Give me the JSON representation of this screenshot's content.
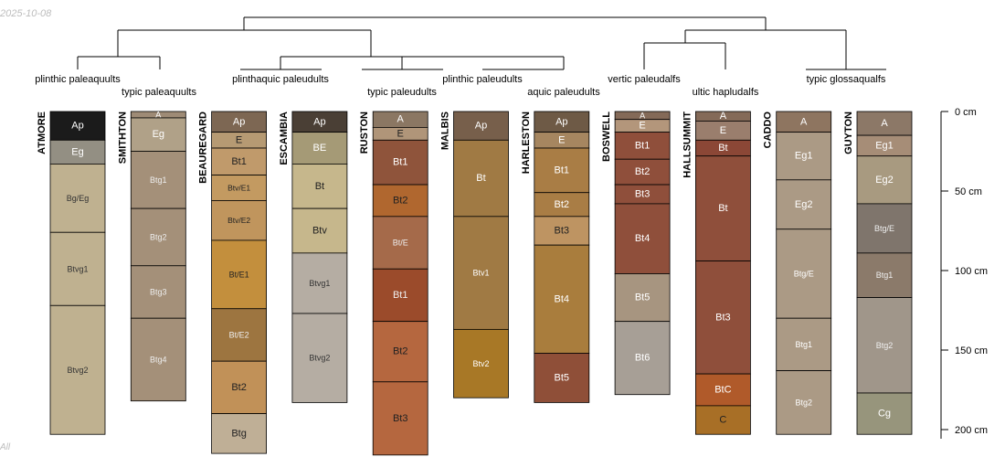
{
  "figure": {
    "date_stamp": "2025-10-08",
    "corner_note": "All"
  },
  "depth_axis": {
    "ticks": [
      {
        "depth": 0,
        "label": "0 cm"
      },
      {
        "depth": 50,
        "label": "50 cm"
      },
      {
        "depth": 100,
        "label": "100 cm"
      },
      {
        "depth": 150,
        "label": "150 cm"
      },
      {
        "depth": 200,
        "label": "200 cm"
      }
    ]
  },
  "dendrogram": {
    "groups": [
      "plinthic paleaquults",
      "typic paleaquults",
      "plinthaquic paleudults",
      "typic paleudults",
      "plinthic paleudults",
      "aquic paleudults",
      "vertic paleudalfs",
      "ultic hapludalfs",
      "typic glossaqualfs"
    ]
  },
  "profiles": [
    {
      "name": "ATMORE",
      "horizons": [
        {
          "name": "Ap",
          "top": 0,
          "bottom": 18,
          "color": "#1b1b1b",
          "text": "#ffffff"
        },
        {
          "name": "Eg",
          "top": 18,
          "bottom": 33,
          "color": "#938f83",
          "text": "#ffffff"
        },
        {
          "name": "Bg/Eg",
          "top": 33,
          "bottom": 76,
          "color": "#bfb190",
          "text": "#333333"
        },
        {
          "name": "Btvg1",
          "top": 76,
          "bottom": 122,
          "color": "#bfb190",
          "text": "#333333"
        },
        {
          "name": "Btvg2",
          "top": 122,
          "bottom": 203,
          "color": "#bfb190",
          "text": "#333333"
        }
      ]
    },
    {
      "name": "SMITHTON",
      "horizons": [
        {
          "name": "A",
          "top": 0,
          "bottom": 4,
          "color": "#9e8b76",
          "text": "#ffffff"
        },
        {
          "name": "Eg",
          "top": 4,
          "bottom": 25,
          "color": "#b0a188",
          "text": "#ffffff"
        },
        {
          "name": "Btg1",
          "top": 25,
          "bottom": 61,
          "color": "#a49079",
          "text": "#eeeeee"
        },
        {
          "name": "Btg2",
          "top": 61,
          "bottom": 97,
          "color": "#a49079",
          "text": "#eeeeee"
        },
        {
          "name": "Btg3",
          "top": 97,
          "bottom": 130,
          "color": "#a49079",
          "text": "#eeeeee"
        },
        {
          "name": "Btg4",
          "top": 130,
          "bottom": 182,
          "color": "#a49079",
          "text": "#eeeeee"
        }
      ]
    },
    {
      "name": "BEAUREGARD",
      "horizons": [
        {
          "name": "Ap",
          "top": 0,
          "bottom": 13,
          "color": "#7d6753",
          "text": "#ffffff"
        },
        {
          "name": "E",
          "top": 13,
          "bottom": 23,
          "color": "#b69a73",
          "text": "#222222"
        },
        {
          "name": "Bt1",
          "top": 23,
          "bottom": 40,
          "color": "#c09a6b",
          "text": "#222222"
        },
        {
          "name": "Btv/E1",
          "top": 40,
          "bottom": 56,
          "color": "#c39a61",
          "text": "#222222"
        },
        {
          "name": "Btv/E2",
          "top": 56,
          "bottom": 81,
          "color": "#c0955d",
          "text": "#222222"
        },
        {
          "name": "Bt/E1",
          "top": 81,
          "bottom": 124,
          "color": "#c38f3d",
          "text": "#222222"
        },
        {
          "name": "Bt/E2",
          "top": 124,
          "bottom": 157,
          "color": "#9d7540",
          "text": "#eeeeee"
        },
        {
          "name": "Bt2",
          "top": 157,
          "bottom": 190,
          "color": "#c19158",
          "text": "#222222"
        },
        {
          "name": "Btg",
          "top": 190,
          "bottom": 215,
          "color": "#bfaf96",
          "text": "#222222"
        }
      ]
    },
    {
      "name": "ESCAMBIA",
      "horizons": [
        {
          "name": "Ap",
          "top": 0,
          "bottom": 13,
          "color": "#4a3f35",
          "text": "#ffffff"
        },
        {
          "name": "BE",
          "top": 13,
          "bottom": 33,
          "color": "#a59a76",
          "text": "#ffffff"
        },
        {
          "name": "Bt",
          "top": 33,
          "bottom": 61,
          "color": "#c6b78c",
          "text": "#222222"
        },
        {
          "name": "Btv",
          "top": 61,
          "bottom": 89,
          "color": "#c6b78c",
          "text": "#222222"
        },
        {
          "name": "Btvg1",
          "top": 89,
          "bottom": 127,
          "color": "#b5ada3",
          "text": "#333333"
        },
        {
          "name": "Btvg2",
          "top": 127,
          "bottom": 183,
          "color": "#b5ada3",
          "text": "#333333"
        }
      ]
    },
    {
      "name": "RUSTON",
      "horizons": [
        {
          "name": "A",
          "top": 0,
          "bottom": 10,
          "color": "#8b7763",
          "text": "#ffffff"
        },
        {
          "name": "E",
          "top": 10,
          "bottom": 18,
          "color": "#b09579",
          "text": "#222222"
        },
        {
          "name": "Bt1",
          "top": 18,
          "bottom": 46,
          "color": "#8f543b",
          "text": "#ffffff"
        },
        {
          "name": "Bt2",
          "top": 46,
          "bottom": 66,
          "color": "#b0672f",
          "text": "#222222"
        },
        {
          "name": "Bt/E",
          "top": 66,
          "bottom": 99,
          "color": "#a56a4a",
          "text": "#eeeeee"
        },
        {
          "name": "Bt1",
          "top": 99,
          "bottom": 132,
          "color": "#9b4b2b",
          "text": "#eeeeee"
        },
        {
          "name": "Bt2",
          "top": 132,
          "bottom": 170,
          "color": "#b5673f",
          "text": "#222222"
        },
        {
          "name": "Bt3",
          "top": 170,
          "bottom": 216,
          "color": "#b5673f",
          "text": "#222222"
        }
      ]
    },
    {
      "name": "MALBIS",
      "horizons": [
        {
          "name": "Ap",
          "top": 0,
          "bottom": 18,
          "color": "#775f4b",
          "text": "#ffffff"
        },
        {
          "name": "Bt",
          "top": 18,
          "bottom": 66,
          "color": "#a07a44",
          "text": "#ffffff"
        },
        {
          "name": "Btv1",
          "top": 66,
          "bottom": 137,
          "color": "#a07a44",
          "text": "#ffffff"
        },
        {
          "name": "Btv2",
          "top": 137,
          "bottom": 180,
          "color": "#a87826",
          "text": "#ffffff"
        }
      ]
    },
    {
      "name": "HARLESTON",
      "horizons": [
        {
          "name": "Ap",
          "top": 0,
          "bottom": 13,
          "color": "#6e5a46",
          "text": "#ffffff"
        },
        {
          "name": "E",
          "top": 13,
          "bottom": 23,
          "color": "#a68660",
          "text": "#ffffff"
        },
        {
          "name": "Bt1",
          "top": 23,
          "bottom": 51,
          "color": "#a97d45",
          "text": "#ffffff"
        },
        {
          "name": "Bt2",
          "top": 51,
          "bottom": 66,
          "color": "#a97d45",
          "text": "#ffffff"
        },
        {
          "name": "Bt3",
          "top": 66,
          "bottom": 84,
          "color": "#be9462",
          "text": "#222222"
        },
        {
          "name": "Bt4",
          "top": 84,
          "bottom": 152,
          "color": "#a97d3d",
          "text": "#ffffff"
        },
        {
          "name": "Bt5",
          "top": 152,
          "bottom": 183,
          "color": "#8f4f38",
          "text": "#ffffff"
        }
      ]
    },
    {
      "name": "BOSWELL",
      "horizons": [
        {
          "name": "A",
          "top": 0,
          "bottom": 5,
          "color": "#846a58",
          "text": "#ffffff"
        },
        {
          "name": "E",
          "top": 5,
          "bottom": 13,
          "color": "#b3967b",
          "text": "#ffffff"
        },
        {
          "name": "Bt1",
          "top": 13,
          "bottom": 30,
          "color": "#8f4f3b",
          "text": "#ffffff"
        },
        {
          "name": "Bt2",
          "top": 30,
          "bottom": 46,
          "color": "#8f4f3b",
          "text": "#ffffff"
        },
        {
          "name": "Bt3",
          "top": 46,
          "bottom": 58,
          "color": "#8f4f3b",
          "text": "#ffffff"
        },
        {
          "name": "Bt4",
          "top": 58,
          "bottom": 102,
          "color": "#8f4f3b",
          "text": "#ffffff"
        },
        {
          "name": "Bt5",
          "top": 102,
          "bottom": 132,
          "color": "#a79580",
          "text": "#ffffff"
        },
        {
          "name": "Bt6",
          "top": 132,
          "bottom": 178,
          "color": "#a79f96",
          "text": "#ffffff"
        }
      ]
    },
    {
      "name": "HALLSUMMIT",
      "horizons": [
        {
          "name": "A",
          "top": 0,
          "bottom": 6,
          "color": "#846a58",
          "text": "#ffffff"
        },
        {
          "name": "E",
          "top": 6,
          "bottom": 18,
          "color": "#9a7e6d",
          "text": "#ffffff"
        },
        {
          "name": "Bt",
          "top": 18,
          "bottom": 28,
          "color": "#8b4736",
          "text": "#ffffff"
        },
        {
          "name": "Bt",
          "top": 28,
          "bottom": 94,
          "color": "#8f4f3b",
          "text": "#ffffff"
        },
        {
          "name": "Bt3",
          "top": 94,
          "bottom": 165,
          "color": "#8f4f3b",
          "text": "#ffffff"
        },
        {
          "name": "BtC",
          "top": 165,
          "bottom": 185,
          "color": "#b05a2a",
          "text": "#ffffff"
        },
        {
          "name": "C",
          "top": 185,
          "bottom": 203,
          "color": "#a86f26",
          "text": "#222222"
        }
      ]
    },
    {
      "name": "CADDO",
      "horizons": [
        {
          "name": "A",
          "top": 0,
          "bottom": 13,
          "color": "#8e7560",
          "text": "#ffffff"
        },
        {
          "name": "Eg1",
          "top": 13,
          "bottom": 43,
          "color": "#ab9a85",
          "text": "#ffffff"
        },
        {
          "name": "Eg2",
          "top": 43,
          "bottom": 74,
          "color": "#ab9a85",
          "text": "#ffffff"
        },
        {
          "name": "Btg/E",
          "top": 74,
          "bottom": 130,
          "color": "#ab9a85",
          "text": "#ffffff"
        },
        {
          "name": "Btg1",
          "top": 130,
          "bottom": 163,
          "color": "#ab9a85",
          "text": "#ffffff"
        },
        {
          "name": "Btg2",
          "top": 163,
          "bottom": 203,
          "color": "#ab9a85",
          "text": "#ffffff"
        }
      ]
    },
    {
      "name": "GUYTON",
      "horizons": [
        {
          "name": "A",
          "top": 0,
          "bottom": 15,
          "color": "#8c7867",
          "text": "#ffffff"
        },
        {
          "name": "Eg1",
          "top": 15,
          "bottom": 28,
          "color": "#a68d77",
          "text": "#ffffff"
        },
        {
          "name": "Eg2",
          "top": 28,
          "bottom": 58,
          "color": "#a89a80",
          "text": "#ffffff"
        },
        {
          "name": "Btg/E",
          "top": 58,
          "bottom": 89,
          "color": "#7f756c",
          "text": "#eeeeee"
        },
        {
          "name": "Btg1",
          "top": 89,
          "bottom": 117,
          "color": "#8b7a6a",
          "text": "#eeeeee"
        },
        {
          "name": "Btg2",
          "top": 117,
          "bottom": 177,
          "color": "#a0968a",
          "text": "#eeeeee"
        },
        {
          "name": "Cg",
          "top": 177,
          "bottom": 203,
          "color": "#97957c",
          "text": "#ffffff"
        }
      ]
    }
  ]
}
